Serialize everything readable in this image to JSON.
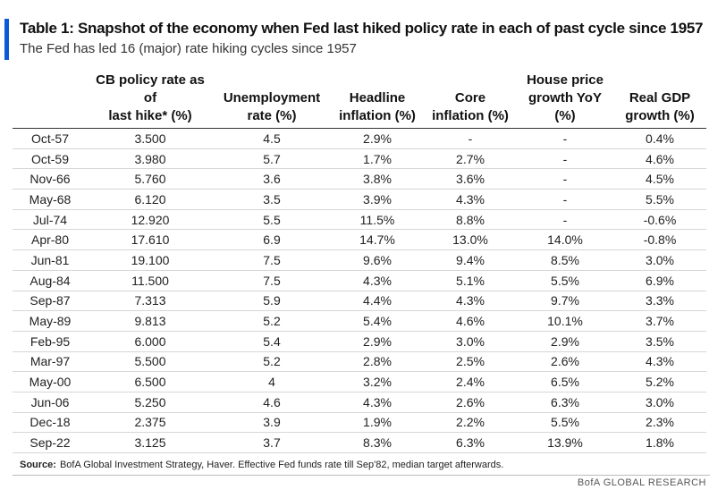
{
  "title": "Table 1: Snapshot of the economy when Fed last hiked policy rate in each of past cycle since 1957",
  "subtitle": "The Fed has led 16 (major) rate hiking cycles since 1957",
  "columns": [
    [
      "",
      ""
    ],
    [
      "CB policy rate as of",
      "last hike* (%)"
    ],
    [
      "Unemployment",
      "rate (%)"
    ],
    [
      "Headline",
      "inflation (%)"
    ],
    [
      "Core",
      "inflation (%)"
    ],
    [
      "House price",
      "growth YoY",
      "(%)"
    ],
    [
      "Real GDP",
      "growth (%)"
    ]
  ],
  "rows": [
    [
      "Oct-57",
      "3.500",
      "4.5",
      "2.9%",
      "-",
      "-",
      "0.4%"
    ],
    [
      "Oct-59",
      "3.980",
      "5.7",
      "1.7%",
      "2.7%",
      "-",
      "4.6%"
    ],
    [
      "Nov-66",
      "5.760",
      "3.6",
      "3.8%",
      "3.6%",
      "-",
      "4.5%"
    ],
    [
      "May-68",
      "6.120",
      "3.5",
      "3.9%",
      "4.3%",
      "-",
      "5.5%"
    ],
    [
      "Jul-74",
      "12.920",
      "5.5",
      "11.5%",
      "8.8%",
      "-",
      "-0.6%"
    ],
    [
      "Apr-80",
      "17.610",
      "6.9",
      "14.7%",
      "13.0%",
      "14.0%",
      "-0.8%"
    ],
    [
      "Jun-81",
      "19.100",
      "7.5",
      "9.6%",
      "9.4%",
      "8.5%",
      "3.0%"
    ],
    [
      "Aug-84",
      "11.500",
      "7.5",
      "4.3%",
      "5.1%",
      "5.5%",
      "6.9%"
    ],
    [
      "Sep-87",
      "7.313",
      "5.9",
      "4.4%",
      "4.3%",
      "9.7%",
      "3.3%"
    ],
    [
      "May-89",
      "9.813",
      "5.2",
      "5.4%",
      "4.6%",
      "10.1%",
      "3.7%"
    ],
    [
      "Feb-95",
      "6.000",
      "5.4",
      "2.9%",
      "3.0%",
      "2.9%",
      "3.5%"
    ],
    [
      "Mar-97",
      "5.500",
      "5.2",
      "2.8%",
      "2.5%",
      "2.6%",
      "4.3%"
    ],
    [
      "May-00",
      "6.500",
      "4",
      "3.2%",
      "2.4%",
      "6.5%",
      "5.2%"
    ],
    [
      "Jun-06",
      "5.250",
      "4.6",
      "4.3%",
      "2.6%",
      "6.3%",
      "3.0%"
    ],
    [
      "Dec-18",
      "2.375",
      "3.9",
      "1.9%",
      "2.2%",
      "5.5%",
      "2.3%"
    ],
    [
      "Sep-22",
      "3.125",
      "3.7",
      "8.3%",
      "6.3%",
      "13.9%",
      "1.8%"
    ]
  ],
  "source_label": "Source:",
  "source_text": "BofA Global Investment Strategy, Haver. Effective Fed funds rate till Sep'82, median target afterwards.",
  "brand": "BofA GLOBAL RESEARCH",
  "colors": {
    "accent": "#0a5ad8"
  }
}
